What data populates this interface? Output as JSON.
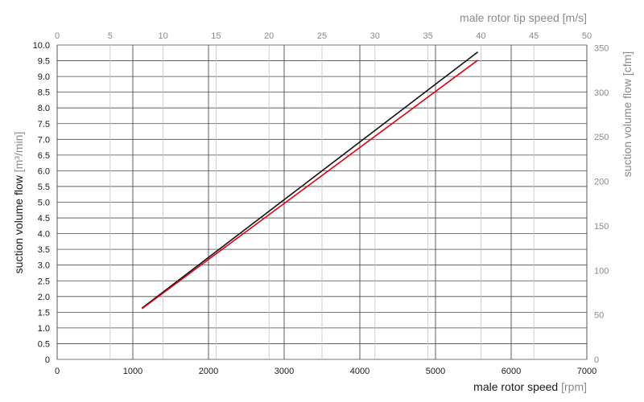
{
  "chart_data": {
    "type": "line",
    "xlabel": "male rotor speed",
    "xunit": "[rpm]",
    "ylabel": "suction volume flow",
    "yunit": "[m³/min]",
    "x2label": "male rotor tip speed",
    "x2unit": "[m/s]",
    "y2label": "suction volume flow",
    "y2unit": "[cfm]",
    "xlim": [
      0,
      7000
    ],
    "ylim": [
      0,
      10
    ],
    "x2lim": [
      0,
      50
    ],
    "y2lim": [
      0,
      353.1467
    ],
    "xticks": [
      "0",
      "1000",
      "2000",
      "3000",
      "4000",
      "5000",
      "6000",
      "7000"
    ],
    "yticks": [
      "0",
      "0.5",
      "1.0",
      "1.5",
      "2.0",
      "2.5",
      "3.0",
      "3.5",
      "4.0",
      "4.5",
      "5.0",
      "5.5",
      "6.0",
      "6.5",
      "7.0",
      "7.5",
      "8.0",
      "8.5",
      "9.0",
      "9.5",
      "10.0"
    ],
    "x2ticks": [
      "0",
      "5",
      "10",
      "15",
      "20",
      "25",
      "30",
      "35",
      "40",
      "45",
      "50"
    ],
    "y2ticks": [
      "0",
      "50",
      "100",
      "150",
      "200",
      "250",
      "300",
      "350"
    ],
    "grid": true,
    "series": [
      {
        "color": "#111111",
        "x": [
          1120,
          5560
        ],
        "y": [
          1.63,
          9.78
        ]
      },
      {
        "color": "#e3000f",
        "x": [
          1120,
          5560
        ],
        "y": [
          1.61,
          9.52
        ]
      }
    ]
  }
}
